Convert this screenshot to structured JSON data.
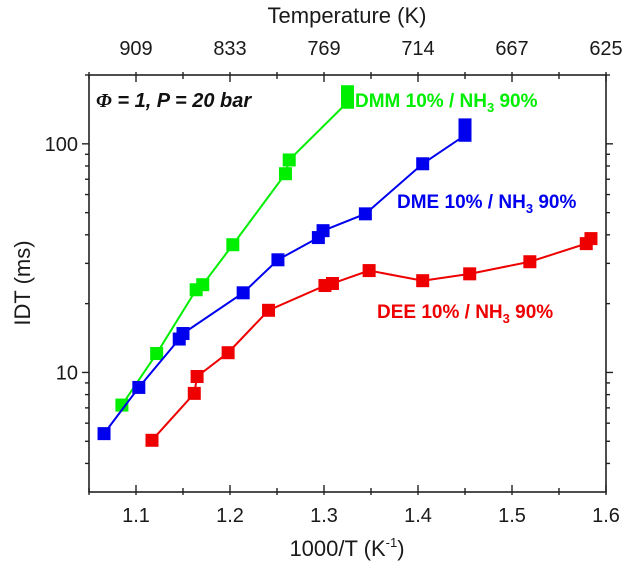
{
  "chart_data": {
    "type": "line",
    "title": "",
    "annotation": "Φ = 1, P = 20 bar",
    "annotation_parts": {
      "phi": "Φ",
      "rest": " = 1, P = 20 bar"
    },
    "xlabel": "1000/T (K⁻¹)",
    "xlabel_parts": {
      "main": "1000/T (K",
      "sup": "-1",
      "end": ")"
    },
    "ylabel": "IDT (ms)",
    "x2label": "Temperature (K)",
    "xlim": [
      1.05,
      1.6
    ],
    "ylim": [
      3,
      200
    ],
    "yscale": "log",
    "grid": false,
    "legend": "inline labels",
    "x_ticks": [
      1.1,
      1.2,
      1.3,
      1.4,
      1.5,
      1.6
    ],
    "x_tick_labels": [
      "1.1",
      "1.2",
      "1.3",
      "1.4",
      "1.5",
      "1.6"
    ],
    "x_minor_ticks": [
      1.05,
      1.15,
      1.25,
      1.35,
      1.45,
      1.55
    ],
    "x2_ticks": [
      1.1,
      1.2,
      1.3,
      1.4,
      1.5,
      1.6
    ],
    "x2_tick_labels": [
      "909",
      "833",
      "769",
      "714",
      "667",
      "625"
    ],
    "y_ticks": [
      10,
      100
    ],
    "y_tick_labels": [
      "10",
      "100"
    ],
    "y_minor_ticks": [
      4,
      5,
      6,
      7,
      8,
      9,
      20,
      30,
      40,
      50,
      60,
      70,
      80,
      90,
      200
    ],
    "series": [
      {
        "name": "DMM 10% / NH3 90%",
        "label_parts": {
          "main": "DMM 10% / NH",
          "sub": "3",
          "end": " 90%"
        },
        "color": "#00ee00",
        "x": [
          1.085,
          1.122,
          1.164,
          1.171,
          1.203,
          1.259,
          1.263,
          1.325,
          1.325
        ],
        "y": [
          7.2,
          12.1,
          23.0,
          24.2,
          36.2,
          74,
          85,
          152,
          169
        ]
      },
      {
        "name": "DME 10% / NH3 90%",
        "label_parts": {
          "main": "DME 10% / NH",
          "sub": "3",
          "end": " 90%"
        },
        "color": "#0000ee",
        "x": [
          1.066,
          1.103,
          1.146,
          1.15,
          1.214,
          1.251,
          1.294,
          1.299,
          1.344,
          1.405,
          1.45,
          1.45
        ],
        "y": [
          5.4,
          8.6,
          14.0,
          14.8,
          22.3,
          31.1,
          38.9,
          41.7,
          49.4,
          81.8,
          109,
          121
        ]
      },
      {
        "name": "DEE 10% / NH3 90%",
        "label_parts": {
          "main": "DEE 10% / NH",
          "sub": "3",
          "end": " 90%"
        },
        "color": "#ee0000",
        "x": [
          1.117,
          1.162,
          1.165,
          1.198,
          1.241,
          1.301,
          1.309,
          1.348,
          1.405,
          1.455,
          1.519,
          1.579,
          1.584
        ],
        "y": [
          5.05,
          8.1,
          9.6,
          12.2,
          18.7,
          24.0,
          24.5,
          27.9,
          25.2,
          27.0,
          30.5,
          36.6,
          38.5
        ]
      }
    ]
  }
}
